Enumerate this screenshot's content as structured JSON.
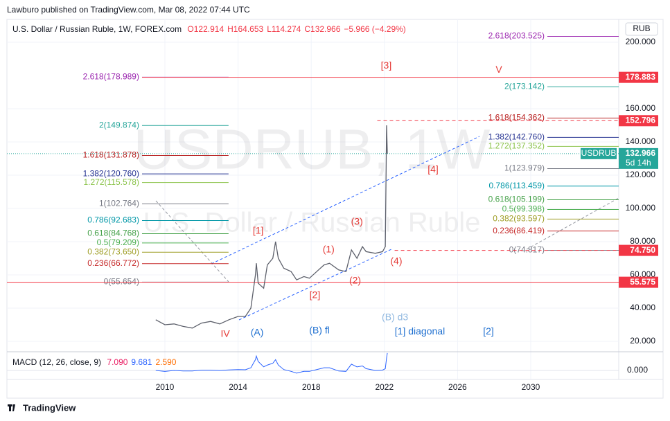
{
  "header": "Lawburo published on TradingView.com, Mar 08, 2022 07:44 UTC",
  "footer": "TradingView",
  "chart_data": {
    "type": "line",
    "title": "U.S. Dollar / Russian Ruble, 1W, FOREX.com",
    "ohlc": [
      "O122.914",
      "H164.653",
      "L114.274",
      "C132.966",
      "−5.966 (−4.29%)"
    ],
    "watermark": "USDRUB, 1W",
    "watermark_sub": "U.S. Dollar / Russian Ruble",
    "currency": "RUB",
    "color": "#5d606b",
    "x": [
      2009.5,
      2010,
      2010.5,
      2011,
      2011.5,
      2012,
      2012.5,
      2013,
      2013.5,
      2014,
      2014.4,
      2014.7,
      2014.95,
      2015.0,
      2015.1,
      2015.4,
      2015.6,
      2015.9,
      2016.05,
      2016.2,
      2016.5,
      2016.9,
      2017.2,
      2017.6,
      2017.9,
      2018.3,
      2018.7,
      2019.0,
      2019.5,
      2019.9,
      2020.2,
      2020.5,
      2020.8,
      2021.0,
      2021.5,
      2021.9,
      2022.05,
      2022.12,
      2022.16
    ],
    "values": [
      33,
      30,
      30.5,
      29,
      28,
      31,
      32,
      30.5,
      33,
      35,
      35,
      40,
      60,
      67,
      55,
      52,
      66,
      70,
      80,
      70,
      64,
      62,
      57,
      59,
      58,
      62,
      66,
      67,
      63,
      62,
      75,
      70,
      77,
      74,
      73,
      74,
      77,
      150,
      132.966
    ],
    "xlim": [
      2001.364,
      2034.811
    ],
    "xticks": [
      2010,
      2014,
      2018,
      2022,
      2026,
      2030
    ],
    "ylim": [
      15,
      213.75
    ],
    "yticks": [
      {
        "value": 20,
        "label": "20.000"
      },
      {
        "value": 40,
        "label": "40.000"
      },
      {
        "value": 60,
        "label": "60.000"
      },
      {
        "value": 80,
        "label": "80.000"
      },
      {
        "value": 100,
        "label": "100.000"
      },
      {
        "value": 120,
        "label": "120.000"
      },
      {
        "value": 140,
        "label": "140.000"
      },
      {
        "value": 160,
        "label": "160.000"
      },
      {
        "value": 200,
        "label": "200.000"
      }
    ],
    "grid": true,
    "price_lines": [
      {
        "value": 178.883,
        "label": "178.883",
        "from": 2008.75,
        "style": "solid",
        "color": "#f23645"
      },
      {
        "value": 152.796,
        "label": "152.796",
        "from": 2021.61,
        "style": "dashed",
        "color": "#f23645"
      },
      {
        "value": 74.75,
        "label": "74.750",
        "from": 2022.56,
        "style": "dashed",
        "color": "#f23645"
      },
      {
        "value": 55.575,
        "label": "55.575",
        "from": 2001.364,
        "style": "solid",
        "color": "#f23645"
      }
    ],
    "last_price": {
      "symbol": "USDRUB",
      "value": 132.966,
      "label": "132.966",
      "countdown": "5d 14h",
      "color": "#26a69a"
    },
    "fib_sets": [
      {
        "x": [
          2008.75,
          2013.48
        ],
        "levels": [
          {
            "label": "2.618(178.989)",
            "value": 178.989,
            "color": "#9c27b0"
          },
          {
            "label": "2(149.874)",
            "value": 149.874,
            "color": "#26a69a"
          },
          {
            "label": "1.618(131.878)",
            "value": 131.878,
            "color": "#b71c1c"
          },
          {
            "label": "1.382(120.760)",
            "value": 120.76,
            "color": "#283593"
          },
          {
            "label": "1.272(115.578)",
            "value": 115.578,
            "color": "#8bc34a"
          },
          {
            "label": "1(102.764)",
            "value": 102.764,
            "color": "#787b86"
          },
          {
            "label": "0.786(92.683)",
            "value": 92.683,
            "color": "#0097a7"
          },
          {
            "label": "0.618(84.768)",
            "value": 84.768,
            "color": "#43a047"
          },
          {
            "label": "0.5(79.209)",
            "value": 79.209,
            "color": "#4caf50"
          },
          {
            "label": "0.382(73.650)",
            "value": 73.65,
            "color": "#9e9d24"
          },
          {
            "label": "0.236(66.772)",
            "value": 66.772,
            "color": "#c62828"
          },
          {
            "label": "0(55.654)",
            "value": 55.654,
            "color": "#787b86"
          }
        ]
      },
      {
        "x": [
          2030.91,
          2034.811
        ],
        "levels": [
          {
            "label": "2.618(203.525)",
            "value": 203.525,
            "color": "#9c27b0"
          },
          {
            "label": "2(173.142)",
            "value": 173.142,
            "color": "#26a69a"
          },
          {
            "label": "1.618(154.362)",
            "value": 154.362,
            "color": "#b71c1c"
          },
          {
            "label": "1.382(142.760)",
            "value": 142.76,
            "color": "#283593"
          },
          {
            "label": "1.272(137.352)",
            "value": 137.352,
            "color": "#8bc34a"
          },
          {
            "label": "1(123.979)",
            "value": 123.979,
            "color": "#787b86"
          },
          {
            "label": "0.786(113.459)",
            "value": 113.459,
            "color": "#0097a7"
          },
          {
            "label": "0.618(105.199)",
            "value": 105.199,
            "color": "#43a047"
          },
          {
            "label": "0.5(99.398)",
            "value": 99.398,
            "color": "#4caf50"
          },
          {
            "label": "0.382(93.597)",
            "value": 93.597,
            "color": "#9e9d24"
          },
          {
            "label": "0.236(86.419)",
            "value": 86.419,
            "color": "#c62828"
          },
          {
            "label": "0(74.817)",
            "value": 74.817,
            "color": "#787b86"
          }
        ]
      }
    ],
    "wave_labels": [
      {
        "text": "[3]",
        "x": 2022.1,
        "y": 185.8,
        "color": "#e53935"
      },
      {
        "text": "V",
        "x": 2028.26,
        "y": 183.3,
        "color": "#e53935"
      },
      {
        "text": "[4]",
        "x": 2024.66,
        "y": 123.3,
        "color": "#e53935"
      },
      {
        "text": "[1]",
        "x": 2015.1,
        "y": 86.25,
        "color": "#e53935"
      },
      {
        "text": "(3)",
        "x": 2020.5,
        "y": 91.7,
        "color": "#e53935"
      },
      {
        "text": "(1)",
        "x": 2018.95,
        "y": 75,
        "color": "#e53935"
      },
      {
        "text": "(2)",
        "x": 2020.4,
        "y": 56.25,
        "color": "#e53935"
      },
      {
        "text": "[2]",
        "x": 2018.2,
        "y": 47.5,
        "color": "#e53935"
      },
      {
        "text": "(4)",
        "x": 2022.65,
        "y": 67.9,
        "color": "#e53935"
      },
      {
        "text": "IV",
        "x": 2013.3,
        "y": 24.2,
        "color": "#e53935"
      },
      {
        "text": "(A)",
        "x": 2015.04,
        "y": 25,
        "color": "#1e6fd0"
      },
      {
        "text": "(B) fl",
        "x": 2018.45,
        "y": 26.25,
        "color": "#1e6fd0"
      },
      {
        "text": "(B) d3",
        "x": 2022.58,
        "y": 34.2,
        "color": "#90b8e0"
      },
      {
        "text": "[1] diagonal",
        "x": 2023.94,
        "y": 25.8,
        "color": "#1e6fd0"
      },
      {
        "text": "[2]",
        "x": 2027.69,
        "y": 25.8,
        "color": "#1e6fd0"
      }
    ],
    "macd": {
      "title": "MACD (12, 26, close, 9)",
      "readings": [
        {
          "value": 7.09,
          "label": "7.090",
          "color": "#e91e63"
        },
        {
          "value": 9.681,
          "label": "9.681",
          "color": "#2962ff"
        },
        {
          "value": 2.59,
          "label": "2.590",
          "color": "#ff6d00"
        }
      ],
      "color": "#2962ff",
      "values": [
        0,
        -0.5,
        0,
        -0.3,
        -0.3,
        0.2,
        0.2,
        0,
        0.3,
        0.5,
        0.4,
        1.5,
        6,
        8,
        5,
        2,
        3,
        4,
        6,
        3,
        0.5,
        -0.5,
        -1.5,
        -0.5,
        -0.5,
        0.5,
        1.5,
        1.5,
        -0.3,
        -0.5,
        3.5,
        2,
        2.5,
        1,
        0,
        0.2,
        1,
        7,
        9.681
      ],
      "ylim": [
        -5,
        10.4
      ],
      "yticks": [
        {
          "value": 0,
          "label": "0.000"
        }
      ]
    }
  }
}
